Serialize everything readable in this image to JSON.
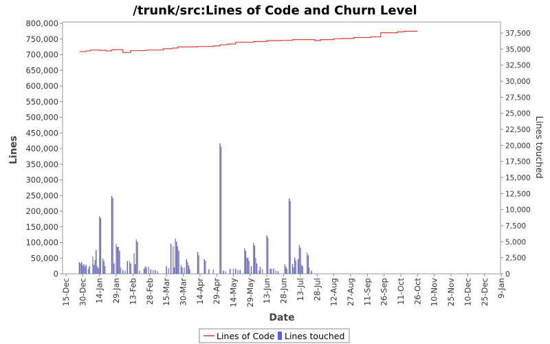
{
  "chart_data": {
    "type": "line+bar",
    "title": "/trunk/src:Lines of Code and Churn Level",
    "xlabel": "Date",
    "ylabel": "Lines",
    "ylabel_right": "Lines touched",
    "x_tick_labels": [
      "15-Dec",
      "30-Dec",
      "14-Jan",
      "29-Jan",
      "13-Feb",
      "28-Feb",
      "15-Mar",
      "30-Mar",
      "14-Apr",
      "29-Apr",
      "14-May",
      "29-May",
      "13-Jun",
      "28-Jun",
      "13-Jul",
      "28-Jul",
      "12-Aug",
      "27-Aug",
      "11-Sep",
      "26-Sep",
      "11-Oct",
      "26-Oct",
      "10-Nov",
      "25-Nov",
      "10-Dec",
      "25-Dec",
      "9-Jan"
    ],
    "y_left": {
      "min": 0,
      "max": 800000,
      "step": 50000,
      "tick_labels": [
        "0",
        "50,000",
        "100,000",
        "150,000",
        "200,000",
        "250,000",
        "300,000",
        "350,000",
        "400,000",
        "450,000",
        "500,000",
        "550,000",
        "600,000",
        "650,000",
        "700,000",
        "750,000",
        "800,000"
      ]
    },
    "y_right": {
      "min": 0,
      "max": 40000,
      "step": 2500,
      "tick_labels": [
        "0",
        "2,500",
        "5,000",
        "7,500",
        "10,000",
        "12,500",
        "15,000",
        "17,500",
        "20,000",
        "22,500",
        "25,000",
        "27,500",
        "30,000",
        "32,500",
        "35,000",
        "37,500"
      ]
    },
    "colors": {
      "loc_line": "#e03a3a",
      "bars": "#5a5aee",
      "bars_alt": "#8a8a8a"
    },
    "series": [
      {
        "name": "Lines of Code",
        "axis": "left",
        "style": "step",
        "points": [
          [
            12,
            710000
          ],
          [
            18,
            712000
          ],
          [
            22,
            715000
          ],
          [
            26,
            715000
          ],
          [
            30,
            714000
          ],
          [
            36,
            712000
          ],
          [
            41,
            716000
          ],
          [
            45,
            716000
          ],
          [
            51,
            707000
          ],
          [
            58,
            713000
          ],
          [
            72,
            715000
          ],
          [
            87,
            719000
          ],
          [
            95,
            721000
          ],
          [
            100,
            725000
          ],
          [
            118,
            726000
          ],
          [
            132,
            728000
          ],
          [
            138,
            732000
          ],
          [
            145,
            734000
          ],
          [
            152,
            740000
          ],
          [
            156,
            740000
          ],
          [
            168,
            742000
          ],
          [
            180,
            745000
          ],
          [
            193,
            746000
          ],
          [
            203,
            748000
          ],
          [
            210,
            748000
          ],
          [
            216,
            748000
          ],
          [
            223,
            745000
          ],
          [
            228,
            748000
          ],
          [
            233,
            748000
          ],
          [
            240,
            751000
          ],
          [
            248,
            752000
          ],
          [
            258,
            755000
          ],
          [
            273,
            757000
          ],
          [
            282,
            770000
          ],
          [
            290,
            770000
          ],
          [
            297,
            773000
          ],
          [
            303,
            775000
          ],
          [
            310,
            775000
          ],
          [
            315,
            775000
          ]
        ]
      },
      {
        "name": "Lines touched",
        "axis": "right",
        "style": "bars",
        "bars": [
          [
            12,
            1800
          ],
          [
            13,
            1600
          ],
          [
            14,
            1800
          ],
          [
            15,
            1300
          ],
          [
            16,
            1500
          ],
          [
            17,
            1100
          ],
          [
            18,
            1400
          ],
          [
            20,
            800
          ],
          [
            21,
            1200
          ],
          [
            24,
            2700
          ],
          [
            25,
            1400
          ],
          [
            26,
            2200
          ],
          [
            27,
            3700
          ],
          [
            28,
            1200
          ],
          [
            29,
            900
          ],
          [
            30,
            9000
          ],
          [
            31,
            8700
          ],
          [
            33,
            2400
          ],
          [
            34,
            2000
          ],
          [
            35,
            1200
          ],
          [
            41,
            12100
          ],
          [
            42,
            11800
          ],
          [
            43,
            1600
          ],
          [
            45,
            4600
          ],
          [
            46,
            4200
          ],
          [
            47,
            4200
          ],
          [
            48,
            3600
          ],
          [
            49,
            1000
          ],
          [
            51,
            600
          ],
          [
            53,
            500
          ],
          [
            55,
            2000
          ],
          [
            57,
            2000
          ],
          [
            58,
            1600
          ],
          [
            61,
            3200
          ],
          [
            62,
            1500
          ],
          [
            63,
            5400
          ],
          [
            64,
            5000
          ],
          [
            66,
            500
          ],
          [
            70,
            800
          ],
          [
            71,
            1200
          ],
          [
            72,
            1000
          ],
          [
            74,
            1100
          ],
          [
            76,
            700
          ],
          [
            78,
            600
          ],
          [
            80,
            600
          ],
          [
            82,
            400
          ],
          [
            90,
            1200
          ],
          [
            92,
            900
          ],
          [
            94,
            4700
          ],
          [
            96,
            4300
          ],
          [
            97,
            1000
          ],
          [
            98,
            5500
          ],
          [
            99,
            5000
          ],
          [
            100,
            4300
          ],
          [
            101,
            3600
          ],
          [
            103,
            1400
          ],
          [
            104,
            1000
          ],
          [
            106,
            1000
          ],
          [
            108,
            2300
          ],
          [
            109,
            1800
          ],
          [
            110,
            1300
          ],
          [
            111,
            700
          ],
          [
            118,
            3400
          ],
          [
            119,
            2900
          ],
          [
            124,
            2300
          ],
          [
            125,
            2000
          ],
          [
            128,
            700
          ],
          [
            132,
            700
          ],
          [
            138,
            20300
          ],
          [
            139,
            19800
          ],
          [
            141,
            500
          ],
          [
            143,
            400
          ],
          [
            147,
            800
          ],
          [
            150,
            800
          ],
          [
            152,
            800
          ],
          [
            154,
            600
          ],
          [
            156,
            600
          ],
          [
            160,
            4000
          ],
          [
            161,
            3600
          ],
          [
            162,
            2500
          ],
          [
            163,
            2500
          ],
          [
            164,
            2000
          ],
          [
            166,
            1200
          ],
          [
            168,
            4800
          ],
          [
            169,
            4400
          ],
          [
            170,
            2500
          ],
          [
            171,
            1600
          ],
          [
            173,
            500
          ],
          [
            174,
            1100
          ],
          [
            176,
            700
          ],
          [
            180,
            6000
          ],
          [
            181,
            5600
          ],
          [
            183,
            800
          ],
          [
            184,
            800
          ],
          [
            186,
            800
          ],
          [
            188,
            500
          ],
          [
            190,
            400
          ],
          [
            196,
            1500
          ],
          [
            197,
            1100
          ],
          [
            198,
            800
          ],
          [
            200,
            11700
          ],
          [
            201,
            11300
          ],
          [
            203,
            1500
          ],
          [
            204,
            1000
          ],
          [
            205,
            2500
          ],
          [
            206,
            2000
          ],
          [
            208,
            2300
          ],
          [
            209,
            4500
          ],
          [
            210,
            4100
          ],
          [
            211,
            1400
          ],
          [
            212,
            1200
          ],
          [
            216,
            3300
          ],
          [
            217,
            2900
          ],
          [
            218,
            1000
          ],
          [
            220,
            500
          ]
        ]
      }
    ],
    "legend": {
      "position": "bottom-center",
      "entries": [
        "Lines of Code",
        "Lines touched"
      ]
    },
    "grid": false
  }
}
